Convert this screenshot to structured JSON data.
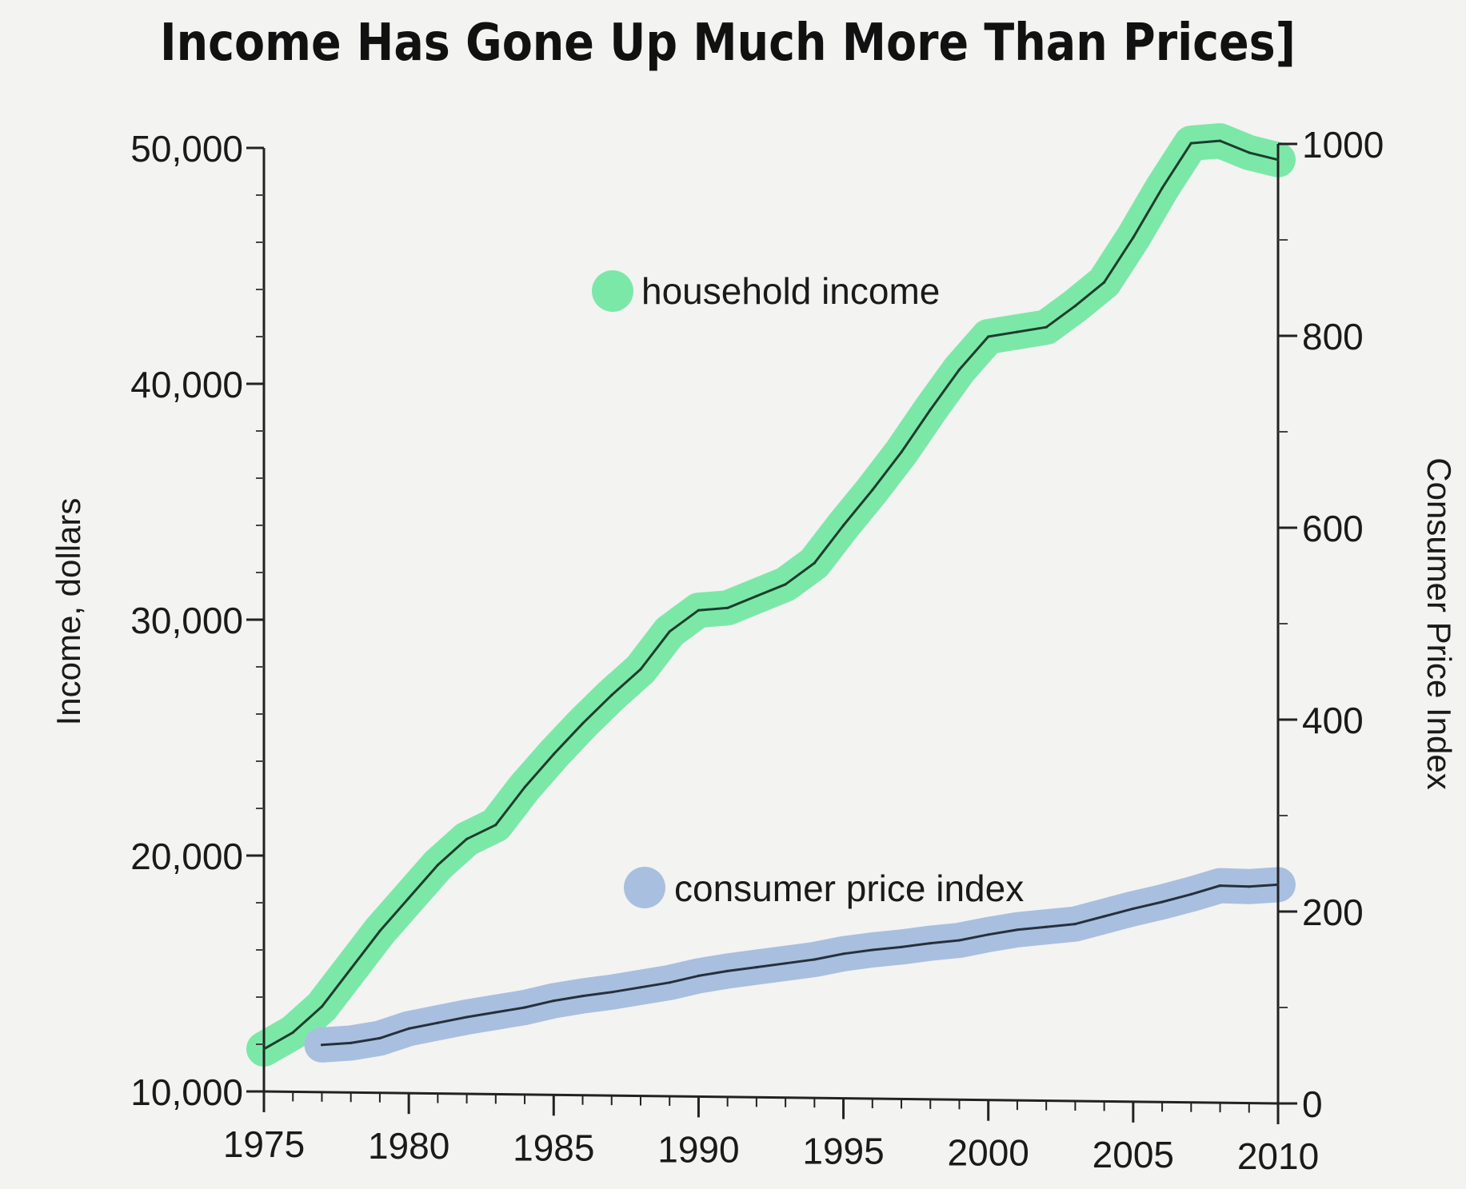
{
  "chart_data": {
    "type": "line",
    "title": "Income Has Gone Up Much More Than Prices]",
    "x_ticks": [
      1975,
      1980,
      1985,
      1990,
      1995,
      2000,
      2005,
      2010
    ],
    "xlim": [
      1975,
      2010
    ],
    "left_axis": {
      "label": "Income, dollars",
      "range": [
        10000,
        50000
      ],
      "ticks": [
        10000,
        20000,
        30000,
        40000,
        50000
      ],
      "tick_labels": [
        "10,000",
        "20,000",
        "30,000",
        "40,000",
        "50,000"
      ]
    },
    "right_axis": {
      "label": "Consumer Price Index",
      "range": [
        0,
        1000
      ],
      "ticks": [
        0,
        200,
        400,
        600,
        800,
        1000
      ],
      "tick_labels": [
        "0",
        "200",
        "400",
        "600",
        "800",
        "1000"
      ]
    },
    "series": [
      {
        "name": "household income",
        "axis": "left",
        "highlight_color": "#7ce8a8",
        "line_color": "#1d3d2c",
        "x": [
          1975,
          1976,
          1977,
          1978,
          1979,
          1980,
          1981,
          1982,
          1983,
          1984,
          1985,
          1986,
          1987,
          1988,
          1989,
          1990,
          1991,
          1992,
          1993,
          1994,
          1995,
          1996,
          1997,
          1998,
          1999,
          2000,
          2001,
          2002,
          2003,
          2004,
          2005,
          2006,
          2007,
          2008,
          2009,
          2010
        ],
        "values": [
          11800,
          12500,
          13600,
          15200,
          16800,
          18200,
          19600,
          20700,
          21300,
          22900,
          24300,
          25600,
          26800,
          27900,
          29500,
          30400,
          30500,
          31000,
          31500,
          32400,
          34000,
          35500,
          37100,
          38900,
          40600,
          42000,
          42200,
          42400,
          43300,
          44300,
          46200,
          48300,
          50200,
          50300,
          49800,
          49500
        ]
      },
      {
        "name": "consumer price index",
        "axis": "right",
        "highlight_color": "#a9bfe0",
        "line_color": "#26303c",
        "x": [
          1977,
          1978,
          1979,
          1980,
          1981,
          1982,
          1983,
          1984,
          1985,
          1986,
          1987,
          1988,
          1989,
          1990,
          1991,
          1992,
          1993,
          1994,
          1995,
          1996,
          1997,
          1998,
          1999,
          2000,
          2001,
          2002,
          2003,
          2004,
          2005,
          2006,
          2007,
          2008,
          2009,
          2010
        ],
        "values": [
          61,
          63,
          68,
          78,
          84,
          90,
          95,
          100,
          107,
          112,
          116,
          121,
          126,
          133,
          138,
          142,
          146,
          150,
          156,
          160,
          163,
          167,
          170,
          176,
          181,
          184,
          187,
          195,
          203,
          210,
          218,
          227,
          226,
          228
        ]
      }
    ],
    "grid": false,
    "legend": "inline labels next to lines"
  },
  "icons": {
    "income_marker": "green-dot",
    "cpi_marker": "blue-dot"
  }
}
